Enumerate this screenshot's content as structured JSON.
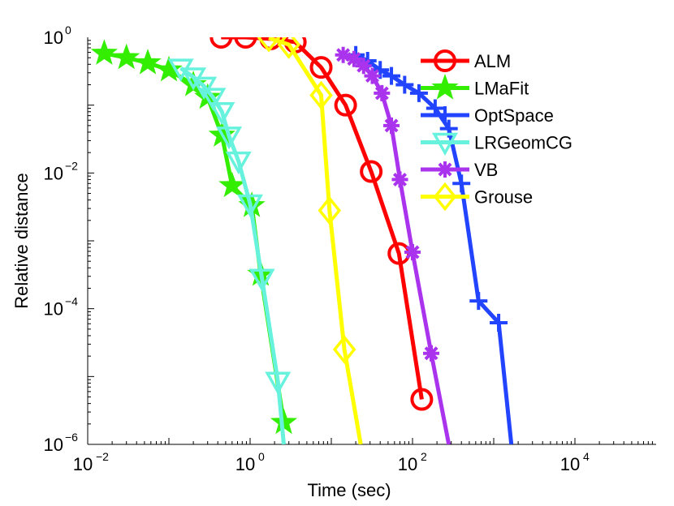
{
  "chart_data": {
    "type": "line",
    "title": "",
    "xlabel": "Time (sec)",
    "ylabel": "Relative distance",
    "x_scale": "log",
    "y_scale": "log",
    "xlim": [
      0.01,
      100000
    ],
    "ylim": [
      1e-06,
      1
    ],
    "x_ticks": [
      {
        "value": 0.01,
        "base": "10",
        "exp": "−2"
      },
      {
        "value": 1,
        "base": "10",
        "exp": "0"
      },
      {
        "value": 100,
        "base": "10",
        "exp": "2"
      },
      {
        "value": 10000,
        "base": "10",
        "exp": "4"
      }
    ],
    "y_ticks": [
      {
        "value": 1,
        "base": "10",
        "exp": "0"
      },
      {
        "value": 0.01,
        "base": "10",
        "exp": "−2"
      },
      {
        "value": 0.0001,
        "base": "10",
        "exp": "−4"
      },
      {
        "value": 1e-06,
        "base": "10",
        "exp": "−6"
      }
    ],
    "legend_position": "top-right",
    "series": [
      {
        "name": "ALM",
        "color": "#ff0000",
        "marker": "circle",
        "points": [
          [
            0.44,
            1.0
          ],
          [
            0.88,
            1.0
          ],
          [
            1.8,
            0.95
          ],
          [
            3.6,
            0.85
          ],
          [
            7.5,
            0.36
          ],
          [
            15,
            0.1
          ],
          [
            31,
            0.0105
          ],
          [
            68,
            0.00065
          ],
          [
            130,
            4.6e-06
          ]
        ]
      },
      {
        "name": "LMaFit",
        "color": "#33ee00",
        "marker": "star",
        "points": [
          [
            0.016,
            0.58
          ],
          [
            0.03,
            0.5
          ],
          [
            0.055,
            0.42
          ],
          [
            0.1,
            0.33
          ],
          [
            0.2,
            0.2
          ],
          [
            0.3,
            0.13
          ],
          [
            0.45,
            0.036
          ],
          [
            0.6,
            0.0065
          ],
          [
            1.05,
            0.0033
          ],
          [
            1.35,
            0.00032
          ],
          [
            2.6,
            2.1e-06
          ]
        ]
      },
      {
        "name": "OptSpace",
        "color": "#2244ff",
        "marker": "plus",
        "points": [
          [
            20,
            0.55
          ],
          [
            28,
            0.45
          ],
          [
            40,
            0.33
          ],
          [
            55,
            0.27
          ],
          [
            80,
            0.2
          ],
          [
            120,
            0.15
          ],
          [
            190,
            0.09
          ],
          [
            280,
            0.045
          ],
          [
            400,
            0.007
          ],
          [
            650,
            0.00013
          ],
          [
            1150,
            6.2e-05
          ],
          [
            1650,
            1e-06
          ]
        ]
      },
      {
        "name": "LRGeomCG",
        "color": "#66f2dd",
        "marker": "triangle-down",
        "points": [
          [
            0.14,
            0.35
          ],
          [
            0.2,
            0.26
          ],
          [
            0.27,
            0.19
          ],
          [
            0.35,
            0.13
          ],
          [
            0.45,
            0.08
          ],
          [
            0.55,
            0.035
          ],
          [
            0.72,
            0.015
          ],
          [
            1.0,
            0.0035
          ],
          [
            1.4,
            0.00028
          ],
          [
            2.2,
            8.5e-06
          ],
          [
            2.6,
            1e-06
          ]
        ]
      },
      {
        "name": "VB",
        "color": "#aa33ee",
        "marker": "asterisk",
        "points": [
          [
            14,
            0.55
          ],
          [
            19,
            0.48
          ],
          [
            25,
            0.38
          ],
          [
            32,
            0.27
          ],
          [
            42,
            0.15
          ],
          [
            55,
            0.05
          ],
          [
            70,
            0.008
          ],
          [
            100,
            0.00068
          ],
          [
            170,
            2.2e-05
          ],
          [
            280,
            1e-06
          ]
        ]
      },
      {
        "name": "Grouse",
        "color": "#ffff00",
        "marker": "diamond",
        "points": [
          [
            1.7,
            0.98
          ],
          [
            3.0,
            0.78
          ],
          [
            7.5,
            0.14
          ],
          [
            9.5,
            0.0028
          ],
          [
            14.5,
            2.5e-05
          ],
          [
            23,
            1e-06
          ]
        ]
      }
    ]
  }
}
